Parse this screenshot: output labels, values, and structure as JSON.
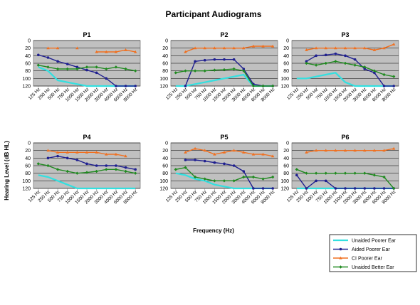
{
  "title": "Participant Audiograms",
  "ylabel": "Hearing Level (dB HL)",
  "xlabel": "Frequency (Hz)",
  "chart_data": {
    "type": "line",
    "title": "Participant Audiograms",
    "xlabel": "Frequency (Hz)",
    "ylabel": "Hearing Level (dB HL)",
    "ylim": [
      0,
      120
    ],
    "y_inverted": true,
    "yticks": [
      0,
      20,
      40,
      60,
      80,
      100,
      120
    ],
    "grid": true,
    "plot_background": "#c0c0c0",
    "legend_position": "bottom-right",
    "categories": [
      "125 Hz",
      "250 Hz",
      "500 Hz",
      "750 Hz",
      "1000 Hz",
      "1500 Hz",
      "2000 Hz",
      "3000 Hz",
      "4000 Hz",
      "6000 Hz",
      "8000 Hz"
    ],
    "series_styles": [
      {
        "name": "Unaided Poorer Ear",
        "color": "#33e0e0",
        "marker": "none"
      },
      {
        "name": "Aided Poorer Ear",
        "color": "#1f1f8f",
        "marker": "circle"
      },
      {
        "name": "CI Poorer Ear",
        "color": "#f07020",
        "marker": "triangle"
      },
      {
        "name": "Unaided Better Ear",
        "color": "#208a20",
        "marker": "diamond"
      }
    ],
    "panels": [
      {
        "title": "P1",
        "series": [
          {
            "name": "Unaided Poorer Ear",
            "values": [
              70,
              80,
              105,
              110,
              115,
              120,
              120,
              120,
              120,
              120,
              120
            ]
          },
          {
            "name": "Aided Poorer Ear",
            "values": [
              38,
              45,
              55,
              62,
              70,
              78,
              85,
              100,
              120,
              120,
              120
            ]
          },
          {
            "name": "CI Poorer Ear",
            "values": [
              null,
              20,
              20,
              null,
              20,
              null,
              30,
              30,
              30,
              25,
              30
            ]
          },
          {
            "name": "Unaided Better Ear",
            "values": [
              65,
              70,
              75,
              75,
              75,
              70,
              70,
              75,
              70,
              75,
              80
            ]
          }
        ]
      },
      {
        "title": "P2",
        "series": [
          {
            "name": "Unaided Poorer Ear",
            "values": [
              120,
              120,
              115,
              110,
              105,
              100,
              95,
              90,
              120,
              120,
              120
            ]
          },
          {
            "name": "Aided Poorer Ear",
            "values": [
              null,
              120,
              55,
              52,
              50,
              50,
              50,
              75,
              115,
              120,
              120
            ]
          },
          {
            "name": "CI Poorer Ear",
            "values": [
              null,
              30,
              20,
              20,
              20,
              20,
              20,
              20,
              15,
              15,
              15
            ]
          },
          {
            "name": "Unaided Better Ear",
            "values": [
              85,
              80,
              80,
              80,
              78,
              77,
              75,
              80,
              120,
              120,
              120
            ]
          }
        ]
      },
      {
        "title": "P3",
        "series": [
          {
            "name": "Unaided Poorer Ear",
            "values": [
              100,
              100,
              95,
              90,
              85,
              110,
              120,
              120,
              120,
              120,
              120
            ]
          },
          {
            "name": "Aided Poorer Ear",
            "values": [
              null,
              55,
              40,
              38,
              35,
              40,
              50,
              75,
              85,
              120,
              120
            ]
          },
          {
            "name": "CI Poorer Ear",
            "values": [
              null,
              25,
              20,
              20,
              20,
              20,
              20,
              20,
              25,
              20,
              10
            ]
          },
          {
            "name": "Unaided Better Ear",
            "values": [
              null,
              60,
              65,
              60,
              55,
              60,
              65,
              70,
              80,
              90,
              95
            ]
          }
        ]
      },
      {
        "title": "P4",
        "series": [
          {
            "name": "Unaided Poorer Ear",
            "values": [
              85,
              90,
              100,
              110,
              120,
              120,
              120,
              120,
              120,
              120,
              120
            ]
          },
          {
            "name": "Aided Poorer Ear",
            "values": [
              null,
              40,
              35,
              40,
              45,
              55,
              60,
              60,
              60,
              65,
              70
            ]
          },
          {
            "name": "CI Poorer Ear",
            "values": [
              null,
              20,
              25,
              25,
              25,
              25,
              25,
              30,
              30,
              35,
              null
            ]
          },
          {
            "name": "Unaided Better Ear",
            "values": [
              55,
              60,
              70,
              75,
              80,
              78,
              75,
              70,
              70,
              75,
              80
            ]
          }
        ]
      },
      {
        "title": "P5",
        "series": [
          {
            "name": "Unaided Poorer Ear",
            "values": [
              80,
              85,
              95,
              100,
              110,
              115,
              120,
              120,
              120,
              120,
              120
            ]
          },
          {
            "name": "Aided Poorer Ear",
            "values": [
              null,
              45,
              45,
              48,
              52,
              55,
              60,
              75,
              120,
              120,
              120
            ]
          },
          {
            "name": "CI Poorer Ear",
            "values": [
              null,
              25,
              15,
              20,
              30,
              25,
              20,
              25,
              30,
              30,
              35
            ]
          },
          {
            "name": "Unaided Better Ear",
            "values": [
              70,
              65,
              90,
              95,
              100,
              100,
              100,
              90,
              90,
              95,
              90
            ]
          }
        ]
      },
      {
        "title": "P6",
        "series": [
          {
            "name": "Unaided Poorer Ear",
            "values": [
              120,
              120,
              120,
              120,
              120,
              120,
              120,
              120,
              120,
              120,
              120
            ]
          },
          {
            "name": "Aided Poorer Ear",
            "values": [
              85,
              120,
              100,
              100,
              120,
              120,
              120,
              120,
              120,
              120,
              120
            ]
          },
          {
            "name": "CI Poorer Ear",
            "values": [
              null,
              25,
              20,
              20,
              20,
              20,
              20,
              20,
              20,
              20,
              15
            ]
          },
          {
            "name": "Unaided Better Ear",
            "values": [
              70,
              80,
              80,
              80,
              80,
              80,
              80,
              80,
              85,
              90,
              120
            ]
          }
        ]
      }
    ]
  }
}
